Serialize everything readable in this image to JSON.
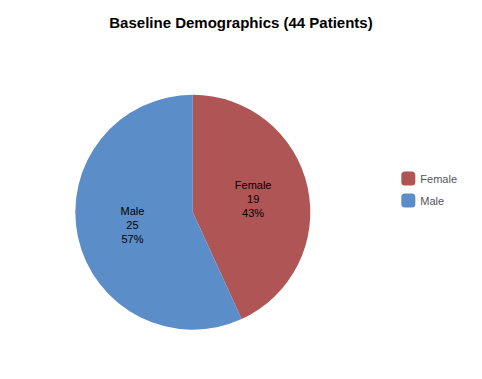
{
  "chart_data": {
    "type": "pie",
    "title": "Baseline Demographics (44 Patients)",
    "categories": [
      "Female",
      "Male"
    ],
    "values": [
      19,
      25
    ],
    "pct": [
      43,
      57
    ],
    "pct_labels": [
      "43%",
      "57%"
    ],
    "colors": [
      "#b05555",
      "#5b8dc8"
    ],
    "data_labels": true,
    "legend": "right"
  }
}
